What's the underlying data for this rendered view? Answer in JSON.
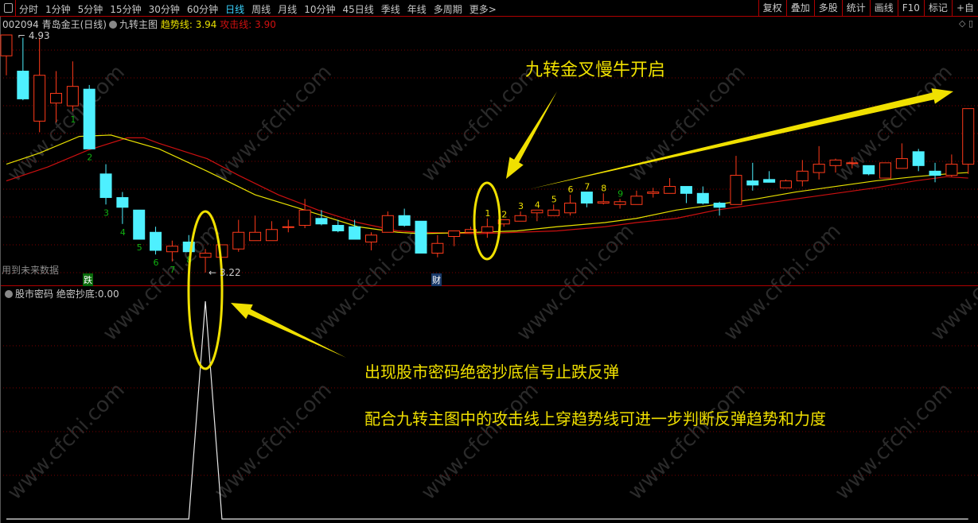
{
  "toolbar": {
    "periods": [
      "分时",
      "1分钟",
      "5分钟",
      "15分钟",
      "30分钟",
      "60分钟",
      "日线",
      "周线",
      "月线",
      "10分钟",
      "45日线",
      "季线",
      "年线",
      "多周期",
      "更多>"
    ],
    "active_period": "日线",
    "right_buttons": [
      "复权",
      "叠加",
      "多股",
      "统计",
      "画线",
      "F10",
      "标记",
      "+自"
    ]
  },
  "info": {
    "stock": "002094 青岛金王(日线)",
    "indicator": "九转主图",
    "trend_label": "趋势线:",
    "trend_value": "3.94",
    "attack_label": "攻击线:",
    "attack_value": "3.90"
  },
  "corner_icons": [
    "diamond-icon",
    "panel-icon"
  ],
  "future_text": "用到未来数据",
  "markers": {
    "die": "跌",
    "cai": "财"
  },
  "price_labels": {
    "high": "4.93",
    "low": "3.22"
  },
  "lower_panel": {
    "title": "股市密码",
    "label": "绝密抄底:",
    "value": "0.00"
  },
  "annotations": {
    "top": "九转金叉慢牛开启",
    "line1": "出现股市密码绝密抄底信号止跌反弹",
    "line2": "配合九转主图中的攻击线上穿趋势线可进一步判断反弹趋势和力度"
  },
  "watermark": "www.cfchi.com",
  "colors": {
    "up": "#ff3a1a",
    "down": "#4ef0ff",
    "trend": "#e8e000",
    "attack": "#cc1010",
    "grid": "#7a0000",
    "annotation": "#f0e000"
  },
  "chart_data": {
    "type": "candlestick",
    "candles": [
      [
        4.78,
        4.93,
        4.64,
        4.93
      ],
      [
        4.67,
        4.91,
        4.46,
        4.47
      ],
      [
        4.31,
        4.91,
        4.23,
        4.64
      ],
      [
        4.44,
        4.67,
        4.3,
        4.51
      ],
      [
        4.42,
        4.74,
        4.38,
        4.56
      ],
      [
        4.54,
        4.57,
        4.11,
        4.11
      ],
      [
        3.93,
        4.0,
        3.71,
        3.76
      ],
      [
        3.76,
        3.8,
        3.57,
        3.69
      ],
      [
        3.67,
        3.67,
        3.46,
        3.46
      ],
      [
        3.51,
        3.55,
        3.35,
        3.38
      ],
      [
        3.37,
        3.45,
        3.3,
        3.41
      ],
      [
        3.44,
        3.49,
        3.37,
        3.37
      ],
      [
        3.33,
        3.39,
        3.22,
        3.36
      ],
      [
        3.33,
        3.42,
        3.33,
        3.42
      ],
      [
        3.39,
        3.6,
        3.37,
        3.51
      ],
      [
        3.45,
        3.63,
        3.45,
        3.51
      ],
      [
        3.45,
        3.59,
        3.45,
        3.53
      ],
      [
        3.55,
        3.6,
        3.51,
        3.55
      ],
      [
        3.56,
        3.75,
        3.54,
        3.67
      ],
      [
        3.61,
        3.67,
        3.56,
        3.57
      ],
      [
        3.56,
        3.6,
        3.51,
        3.52
      ],
      [
        3.55,
        3.6,
        3.46,
        3.46
      ],
      [
        3.44,
        3.51,
        3.38,
        3.49
      ],
      [
        3.51,
        3.66,
        3.51,
        3.63
      ],
      [
        3.63,
        3.68,
        3.55,
        3.56
      ],
      [
        3.59,
        3.59,
        3.36,
        3.36
      ],
      [
        3.36,
        3.49,
        3.33,
        3.43
      ],
      [
        3.48,
        3.52,
        3.41,
        3.52
      ],
      [
        3.51,
        3.55,
        3.51,
        3.53
      ],
      [
        3.51,
        3.61,
        3.47,
        3.55
      ],
      [
        3.57,
        3.6,
        3.55,
        3.6
      ],
      [
        3.59,
        3.66,
        3.59,
        3.63
      ],
      [
        3.65,
        3.67,
        3.59,
        3.67
      ],
      [
        3.63,
        3.71,
        3.63,
        3.67
      ],
      [
        3.65,
        3.78,
        3.63,
        3.72
      ],
      [
        3.8,
        3.8,
        3.69,
        3.72
      ],
      [
        3.72,
        3.79,
        3.71,
        3.73
      ],
      [
        3.71,
        3.75,
        3.68,
        3.73
      ],
      [
        3.71,
        3.81,
        3.71,
        3.77
      ],
      [
        3.79,
        3.83,
        3.76,
        3.8
      ],
      [
        3.79,
        3.9,
        3.79,
        3.84
      ],
      [
        3.84,
        3.84,
        3.72,
        3.79
      ],
      [
        3.79,
        3.84,
        3.71,
        3.72
      ],
      [
        3.72,
        3.73,
        3.63,
        3.69
      ],
      [
        3.71,
        4.06,
        3.71,
        3.92
      ],
      [
        3.88,
        4.01,
        3.81,
        3.85
      ],
      [
        3.89,
        3.95,
        3.87,
        3.87
      ],
      [
        3.83,
        3.89,
        3.83,
        3.88
      ],
      [
        3.88,
        4.03,
        3.84,
        3.95
      ],
      [
        3.94,
        4.13,
        3.89,
        4.0
      ],
      [
        3.99,
        4.04,
        3.94,
        4.03
      ],
      [
        4.01,
        4.05,
        3.97,
        4.01
      ],
      [
        3.99,
        3.99,
        3.92,
        3.93
      ],
      [
        3.9,
        4.01,
        3.9,
        4.01
      ],
      [
        3.97,
        4.15,
        3.97,
        4.04
      ],
      [
        4.09,
        4.11,
        3.95,
        3.99
      ],
      [
        3.95,
        4.01,
        3.87,
        3.92
      ],
      [
        3.92,
        4.07,
        3.91,
        4.0
      ],
      [
        4.0,
        4.4,
        3.93,
        4.4
      ]
    ],
    "candle_fields": [
      "open",
      "high",
      "low",
      "close"
    ],
    "trend_line": [
      [
        1,
        4.0
      ],
      [
        3,
        4.08
      ],
      [
        5.4,
        4.2
      ],
      [
        7.3,
        4.21
      ],
      [
        10.2,
        4.11
      ],
      [
        13.1,
        3.95
      ],
      [
        16,
        3.78
      ],
      [
        19.8,
        3.64
      ],
      [
        22.2,
        3.55
      ],
      [
        24.6,
        3.51
      ],
      [
        26,
        3.5
      ],
      [
        29.4,
        3.51
      ],
      [
        31.8,
        3.52
      ],
      [
        34.2,
        3.55
      ],
      [
        37.1,
        3.58
      ],
      [
        39,
        3.61
      ],
      [
        41.4,
        3.67
      ],
      [
        43.8,
        3.71
      ],
      [
        46.2,
        3.75
      ],
      [
        48.6,
        3.8
      ],
      [
        51,
        3.84
      ],
      [
        53.4,
        3.88
      ],
      [
        55.8,
        3.91
      ],
      [
        57.7,
        3.93
      ],
      [
        59,
        3.94
      ]
    ],
    "attack_line": [
      [
        1,
        3.88
      ],
      [
        3.5,
        3.98
      ],
      [
        5.9,
        4.1
      ],
      [
        8.3,
        4.19
      ],
      [
        9.3,
        4.19
      ],
      [
        10.2,
        4.15
      ],
      [
        13.1,
        4.04
      ],
      [
        15,
        3.92
      ],
      [
        17.4,
        3.78
      ],
      [
        19.8,
        3.67
      ],
      [
        22.2,
        3.58
      ],
      [
        24.6,
        3.52
      ],
      [
        26,
        3.51
      ],
      [
        29.4,
        3.5
      ],
      [
        31.8,
        3.51
      ],
      [
        34.2,
        3.52
      ],
      [
        37.1,
        3.55
      ],
      [
        39,
        3.58
      ],
      [
        41.4,
        3.61
      ],
      [
        43.8,
        3.67
      ],
      [
        46.2,
        3.71
      ],
      [
        48.6,
        3.75
      ],
      [
        51,
        3.79
      ],
      [
        53.4,
        3.83
      ],
      [
        55.8,
        3.88
      ],
      [
        57.7,
        3.91
      ],
      [
        59,
        3.9
      ]
    ],
    "nine_down_counts": [
      [
        5,
        "1"
      ],
      [
        6,
        "2"
      ],
      [
        7,
        "3"
      ],
      [
        8,
        "4"
      ],
      [
        9,
        "5"
      ],
      [
        10,
        "6"
      ],
      [
        11,
        "7"
      ],
      [
        12,
        "8"
      ]
    ],
    "nine_up_counts": [
      [
        30,
        "1"
      ],
      [
        31,
        "2"
      ],
      [
        32,
        "3"
      ],
      [
        33,
        "4"
      ],
      [
        34,
        "5"
      ],
      [
        35,
        "6"
      ],
      [
        36,
        "7"
      ],
      [
        37,
        "8"
      ],
      [
        38,
        "9"
      ]
    ],
    "price_range": [
      3.22,
      4.93
    ],
    "signal": {
      "name": "绝密抄底",
      "spike_candle": 13,
      "spike_value": 1,
      "baseline": 0
    },
    "grid": true
  }
}
